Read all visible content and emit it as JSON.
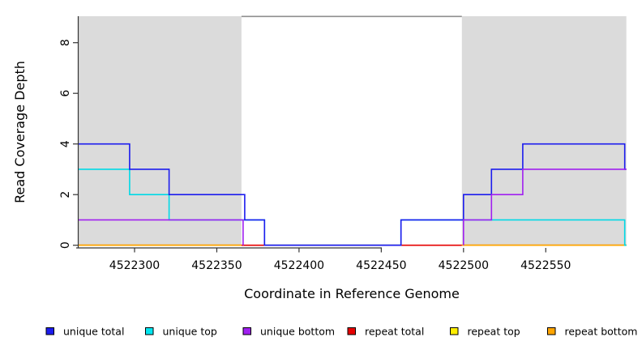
{
  "chart_data": {
    "type": "line",
    "subtype": "step-coverage-plot",
    "title": "",
    "xlabel": "Coordinate in Reference Genome",
    "ylabel": "Read Coverage Depth",
    "xlim": [
      4522266,
      4522599
    ],
    "ylim": [
      0,
      9.05
    ],
    "x_ticks": [
      4522300,
      4522350,
      4522400,
      4522450,
      4522500,
      4522550
    ],
    "y_ticks": [
      0,
      2,
      4,
      6,
      8
    ],
    "grid": false,
    "shade_color": "#dbdbdb",
    "top_border_color": "#8f8f8f",
    "axis_color": "#333333",
    "shaded_regions": [
      {
        "name": "repeat-region-left",
        "x0": 4522266,
        "x1": 4522365
      },
      {
        "name": "repeat-region-right",
        "x0": 4522499,
        "x1": 4522599
      }
    ],
    "series": [
      {
        "name": "repeat total",
        "color": "#e60000",
        "paths": [
          [
            [
              4522266,
              0
            ],
            [
              4522599,
              0
            ]
          ]
        ]
      },
      {
        "name": "repeat top",
        "color": "#ffe800",
        "paths": [
          [
            [
              4522266,
              0
            ],
            [
              4522365,
              0
            ]
          ],
          [
            [
              4522499,
              0
            ],
            [
              4522599,
              0
            ]
          ]
        ]
      },
      {
        "name": "repeat bottom",
        "color": "#ffa500",
        "paths": [
          [
            [
              4522266,
              0
            ],
            [
              4522365,
              0
            ]
          ],
          [
            [
              4522499,
              0
            ],
            [
              4522599,
              0
            ]
          ]
        ]
      },
      {
        "name": "unique top",
        "color": "#00d9e6",
        "paths": [
          [
            [
              4522266,
              3
            ],
            [
              4522297,
              3
            ],
            [
              4522297,
              2
            ],
            [
              4522321,
              2
            ],
            [
              4522321,
              1
            ],
            [
              4522379,
              1
            ],
            [
              4522379,
              0
            ],
            [
              4522462,
              0
            ],
            [
              4522462,
              1
            ],
            [
              4522598,
              1
            ],
            [
              4522598,
              0
            ],
            [
              4522599,
              0
            ]
          ]
        ]
      },
      {
        "name": "unique total",
        "color": "#1c1cee",
        "paths": [
          [
            [
              4522266,
              4
            ],
            [
              4522297,
              4
            ],
            [
              4522297,
              3
            ],
            [
              4522321,
              3
            ],
            [
              4522321,
              2
            ],
            [
              4522367,
              2
            ],
            [
              4522367,
              1
            ],
            [
              4522379,
              1
            ],
            [
              4522379,
              0
            ],
            [
              4522462,
              0
            ],
            [
              4522462,
              1
            ],
            [
              4522500,
              1
            ],
            [
              4522500,
              2
            ],
            [
              4522517,
              2
            ],
            [
              4522517,
              3
            ],
            [
              4522536,
              3
            ],
            [
              4522536,
              4
            ],
            [
              4522598,
              4
            ],
            [
              4522598,
              3
            ],
            [
              4522599,
              3
            ]
          ]
        ]
      },
      {
        "name": "unique bottom",
        "color": "#a020f0",
        "paths": [
          [
            [
              4522266,
              1
            ],
            [
              4522366,
              1
            ],
            [
              4522366,
              0
            ]
          ],
          [
            [
              4522500,
              0
            ],
            [
              4522500,
              1
            ],
            [
              4522517,
              1
            ],
            [
              4522517,
              2
            ],
            [
              4522536,
              2
            ],
            [
              4522536,
              3
            ],
            [
              4522599,
              3
            ]
          ]
        ]
      }
    ],
    "legend": [
      {
        "label": "unique total",
        "color": "#1c1cee"
      },
      {
        "label": "unique top",
        "color": "#00e6f0"
      },
      {
        "label": "unique bottom",
        "color": "#a020f0"
      },
      {
        "label": "repeat total",
        "color": "#e60000"
      },
      {
        "label": "repeat top",
        "color": "#ffee00"
      },
      {
        "label": "repeat bottom",
        "color": "#ffa500"
      }
    ],
    "legend_position": "bottom"
  }
}
